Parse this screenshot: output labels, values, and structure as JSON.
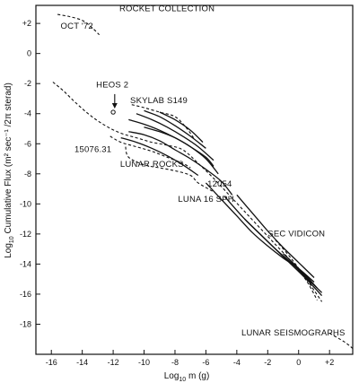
{
  "chart_data": {
    "type": "line",
    "title": "",
    "xlabel_main": "Log",
    "xlabel_sub": "10",
    "xlabel_rest": " m (g)",
    "ylabel_main": "Log",
    "ylabel_sub": "10",
    "ylabel_rest": " Cumulative Flux (m² sec⁻¹ /2π sterad)",
    "xlim": [
      -17,
      3.5
    ],
    "ylim": [
      -20,
      3.2
    ],
    "x_ticks": [
      -16,
      -14,
      -12,
      -10,
      -8,
      -6,
      -4,
      -2,
      0,
      2
    ],
    "x_tick_labels": [
      "-16",
      "-14",
      "-12",
      "-10",
      "-8",
      "-6",
      "-4",
      "-2",
      "0",
      "+2"
    ],
    "y_ticks": [
      2,
      0,
      -2,
      -4,
      -6,
      -8,
      -10,
      -12,
      -14,
      -16,
      -18
    ],
    "y_tick_labels": [
      "+2",
      "0",
      "-2",
      "-4",
      "-6",
      "-8",
      "-10",
      "-12",
      "-14",
      "-16",
      "-18"
    ],
    "grid": false,
    "series": [
      {
        "style": "dashed",
        "x": [
          -15.6,
          -14.8,
          -14,
          -13.4,
          -12.9
        ],
        "y": [
          2.6,
          2.45,
          2.2,
          1.75,
          1.25
        ]
      },
      {
        "style": "dashed",
        "x": [
          -15.9,
          -15.2,
          -14.5,
          -13.5,
          -12.5,
          -11.5,
          -10.5,
          -9.5,
          -8.5,
          -7.5,
          -6.5,
          -5.5,
          -4.5,
          -3.5,
          -2.5,
          -1.5,
          -0.5,
          0.5,
          1.2
        ],
        "y": [
          -1.9,
          -2.5,
          -3.2,
          -4.1,
          -4.8,
          -5.3,
          -5.6,
          -5.9,
          -6.1,
          -6.4,
          -7.3,
          -8.3,
          -9.4,
          -10.5,
          -11.6,
          -12.7,
          -13.8,
          -15.1,
          -16.4
        ]
      },
      {
        "style": "dashed",
        "x": [
          -10.8,
          -10,
          -9,
          -8,
          -7.3,
          -6.8
        ],
        "y": [
          -3.4,
          -3.6,
          -3.9,
          -4.2,
          -4.9,
          -5.6
        ]
      },
      {
        "style": "dashed",
        "x": [
          -12.2,
          -11.5,
          -10.5,
          -9.5,
          -8.5,
          -7.5,
          -7
        ],
        "y": [
          -5.5,
          -5.9,
          -6.2,
          -6.5,
          -6.9,
          -7.3,
          -7.6
        ]
      },
      {
        "style": "dashed",
        "x": [
          -11.2,
          -11,
          -10,
          -9,
          -8,
          -7,
          -6.5,
          -5.5
        ],
        "y": [
          -6.2,
          -6.9,
          -7.4,
          -7.6,
          -7.8,
          -8.1,
          -8.6,
          -9.2
        ]
      },
      {
        "style": "dashed",
        "x": [
          -1.5,
          -0.5,
          0.5,
          1.5
        ],
        "y": [
          -12.4,
          -13.6,
          -15,
          -16.5
        ]
      },
      {
        "style": "dashed",
        "x": [
          2,
          3,
          3.6
        ],
        "y": [
          -18.6,
          -19.2,
          -19.7
        ]
      },
      {
        "style": "solid",
        "x": [
          -11,
          -10,
          -9,
          -8,
          -7,
          -6,
          -5.2
        ],
        "y": [
          -4.4,
          -4.7,
          -5.1,
          -5.6,
          -6.2,
          -7,
          -8
        ]
      },
      {
        "style": "solid",
        "x": [
          -10.5,
          -9.5,
          -8.5,
          -7.5,
          -6.5,
          -5.5
        ],
        "y": [
          -4,
          -4.4,
          -4.9,
          -5.5,
          -6.2,
          -7.1
        ]
      },
      {
        "style": "solid",
        "x": [
          -10,
          -9,
          -8,
          -7,
          -6
        ],
        "y": [
          -3.8,
          -4.2,
          -4.8,
          -5.5,
          -6.3
        ]
      },
      {
        "style": "solid",
        "x": [
          -9,
          -8,
          -7,
          -6.2
        ],
        "y": [
          -3.9,
          -4.4,
          -5.1,
          -5.9
        ]
      },
      {
        "style": "solid",
        "x": [
          -11,
          -10,
          -9,
          -8,
          -7,
          -6,
          -5,
          -4.3
        ],
        "y": [
          -5.2,
          -5.4,
          -5.8,
          -6.4,
          -7,
          -7.7,
          -8.5,
          -9.4
        ]
      },
      {
        "style": "solid",
        "x": [
          -10,
          -9,
          -8,
          -7,
          -6,
          -5.5
        ],
        "y": [
          -4.9,
          -5.2,
          -5.6,
          -6.2,
          -6.9,
          -7.5
        ]
      },
      {
        "style": "solid",
        "x": [
          -11.5,
          -10.5,
          -9.5,
          -8.5,
          -7.5,
          -6.5
        ],
        "y": [
          -5.6,
          -5.9,
          -6.3,
          -6.8,
          -7.4,
          -8.1
        ]
      },
      {
        "style": "solid",
        "x": [
          -6,
          -5,
          -4,
          -3,
          -2,
          -1,
          0,
          1
        ],
        "y": [
          -8.6,
          -9.7,
          -10.8,
          -11.9,
          -12.8,
          -13.6,
          -14.3,
          -15.2
        ]
      },
      {
        "style": "solid",
        "x": [
          -4,
          -3,
          -2,
          -1,
          0,
          1
        ],
        "y": [
          -9.4,
          -10.6,
          -11.8,
          -12.9,
          -13.9,
          -14.9
        ]
      },
      {
        "style": "solid",
        "x": [
          -4.8,
          -3.5,
          -2.5,
          -1.5,
          -0.5,
          0.5,
          1.5
        ],
        "y": [
          -9.5,
          -11,
          -12,
          -13,
          -13.9,
          -14.9,
          -15.9
        ]
      },
      {
        "style": "solid",
        "x": [
          -3.5,
          -2.5,
          -1.5,
          -0.5,
          0.5,
          1.5
        ],
        "y": [
          -11,
          -12,
          -13,
          -14,
          -15,
          -16.1
        ]
      },
      {
        "style": "solid",
        "x": [
          -1,
          0,
          0.8
        ],
        "y": [
          -13.3,
          -14.3,
          -15.3
        ]
      },
      {
        "style": "solid",
        "x": [
          -0.5,
          0.5,
          1.2
        ],
        "y": [
          -13.8,
          -14.8,
          -15.6
        ]
      }
    ],
    "points": [
      {
        "x": -12,
        "y": -3.9,
        "marker": "open-circle"
      }
    ],
    "annotations": [
      {
        "text": "ROCKET COLLECTION",
        "x": -11.6,
        "y": 2.8
      },
      {
        "text": "OCT '72",
        "x": -15.4,
        "y": 1.65
      },
      {
        "text": "HEOS 2",
        "x": -13.1,
        "y": -2.25
      },
      {
        "text": "SKYLAB S149",
        "x": -10.9,
        "y": -3.3
      },
      {
        "text": "15076.31",
        "x": -14.5,
        "y": -6.55
      },
      {
        "text": "LUNAR ROCKS",
        "x": -11.55,
        "y": -7.55
      },
      {
        "text": "12054",
        "x": -5.9,
        "y": -8.85
      },
      {
        "text": "LUNA 16 SPH",
        "x": -7.8,
        "y": -9.85
      },
      {
        "text": "SEC VIDICON",
        "x": -2,
        "y": -12.15
      },
      {
        "text": "LUNAR SEISMOGRAPHS",
        "x": -3.7,
        "y": -18.75
      }
    ],
    "arrow": {
      "x": -11.9,
      "from_y": -2.7,
      "to_y": -3.6
    }
  }
}
